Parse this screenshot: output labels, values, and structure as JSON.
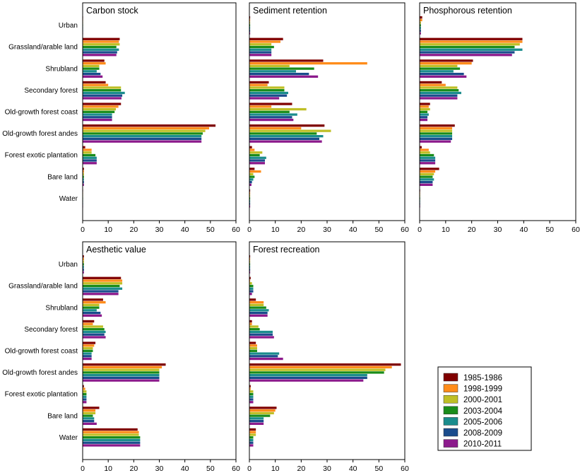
{
  "chart_data": {
    "type": "bar",
    "orientation": "horizontal",
    "categories": [
      "Urban",
      "Grassland/arable land",
      "Shrubland",
      "Secondary forest",
      "Old-growth forest coast",
      "Old-growth forest andes",
      "Forest exotic plantation",
      "Bare land",
      "Water"
    ],
    "xlim": [
      0,
      60
    ],
    "xticks": [
      0,
      10,
      20,
      30,
      40,
      50,
      60
    ],
    "series_names": [
      "1985-1986",
      "1998-1999",
      "2000-2001",
      "2003-2004",
      "2005-2006",
      "2008-2009",
      "2010-2011"
    ],
    "series_colors": [
      "#800000",
      "#ff8c1a",
      "#bfbf26",
      "#1a8c1a",
      "#1a8c8c",
      "#1a4c8c",
      "#8c1a8c"
    ],
    "legend_position": "bottom-right",
    "panels": [
      {
        "title": "Carbon stock",
        "values": [
          [
            0,
            0,
            0,
            0,
            0,
            0,
            0
          ],
          [
            14.5,
            14.2,
            14.5,
            13.2,
            14.2,
            13.5,
            13.2
          ],
          [
            8.5,
            9,
            6.5,
            6.5,
            5.5,
            7,
            7.8
          ],
          [
            9,
            10,
            15,
            15,
            16.5,
            15.5,
            15.2
          ],
          [
            15,
            14,
            13,
            12.5,
            11.5,
            11.5,
            11.5
          ],
          [
            52,
            49.5,
            48,
            47,
            46.5,
            46.5,
            46.5
          ],
          [
            1,
            3.5,
            3.5,
            5,
            5.5,
            5.5,
            5.5
          ],
          [
            0.5,
            0.5,
            0.5,
            0.5,
            0.5,
            0.5,
            0.5
          ],
          [
            0,
            0,
            0,
            0,
            0,
            0,
            0
          ]
        ]
      },
      {
        "title": "Sediment retention",
        "values": [
          [
            0.3,
            0.3,
            0.3,
            0.3,
            0.3,
            0.3,
            0.3
          ],
          [
            13,
            12,
            8.5,
            9.5,
            8.5,
            8.5,
            8.5
          ],
          [
            28.5,
            45.5,
            15.5,
            25,
            18,
            23,
            26.5
          ],
          [
            7.5,
            7,
            13.5,
            13.5,
            15,
            14.5,
            11.5
          ],
          [
            16.5,
            8.5,
            22,
            15.5,
            18.5,
            16.5,
            17
          ],
          [
            29,
            20,
            31.5,
            26,
            28.5,
            27,
            28
          ],
          [
            1,
            2,
            5,
            4,
            6.5,
            6,
            6
          ],
          [
            2,
            4.5,
            1.5,
            2,
            1.5,
            1,
            0.8
          ],
          [
            0.3,
            0.3,
            0.3,
            0.3,
            0.3,
            0.3,
            0.3
          ]
        ]
      },
      {
        "title": "Phosphorous retention",
        "values": [
          [
            1,
            1,
            0.5,
            0.5,
            0.5,
            0.5,
            0.5
          ],
          [
            39.5,
            39.5,
            38.5,
            36.5,
            39.5,
            36.5,
            35.5
          ],
          [
            20.5,
            20,
            14.5,
            15.5,
            13,
            17,
            18
          ],
          [
            8.5,
            10,
            14.5,
            15,
            16,
            14.5,
            14.5
          ],
          [
            4,
            3.5,
            4,
            3,
            3.5,
            3,
            3
          ],
          [
            13.5,
            12.5,
            12.5,
            12.5,
            12.5,
            12.5,
            12
          ],
          [
            0.8,
            3.5,
            4,
            5.5,
            6,
            6,
            6
          ],
          [
            7.5,
            6,
            5.5,
            5,
            5.5,
            5,
            5
          ],
          [
            0.2,
            0.2,
            0.2,
            0.2,
            0.2,
            0.2,
            0.2
          ]
        ]
      },
      {
        "title": "Aesthetic value",
        "values": [
          [
            0.5,
            0.5,
            0.5,
            0.5,
            0.5,
            0.5,
            0.5
          ],
          [
            15,
            15.5,
            15.5,
            14.5,
            15.5,
            14,
            14
          ],
          [
            8,
            9,
            6.5,
            6.5,
            5.5,
            7,
            7.5
          ],
          [
            4.5,
            4,
            8,
            8.5,
            9,
            8.5,
            9
          ],
          [
            5,
            4.5,
            4,
            4,
            3.5,
            3.5,
            3.5
          ],
          [
            32.5,
            31,
            30,
            30,
            30,
            30,
            30
          ],
          [
            0.5,
            1,
            1.5,
            1.5,
            1.5,
            1.5,
            1.5
          ],
          [
            6.5,
            5,
            5,
            4,
            4.5,
            4.5,
            5.5
          ],
          [
            21.5,
            22,
            22,
            22.5,
            22.5,
            22.5,
            22.5
          ]
        ]
      },
      {
        "title": "Forest recreation",
        "values": [
          [
            0.3,
            0.3,
            0.3,
            0.3,
            0.3,
            0.3,
            0.3
          ],
          [
            0.5,
            0.3,
            1,
            1.5,
            1.5,
            1.5,
            1
          ],
          [
            2.5,
            5.5,
            5.5,
            6.5,
            7.5,
            7,
            7
          ],
          [
            1,
            1,
            3.5,
            4,
            9,
            9,
            9.5
          ],
          [
            2.5,
            3,
            3,
            3,
            11.5,
            11,
            13
          ],
          [
            58.5,
            55,
            52.5,
            52,
            45.5,
            45.5,
            44
          ],
          [
            0.5,
            0.5,
            1.5,
            1.5,
            1.5,
            1.5,
            1.5
          ],
          [
            10.5,
            10,
            9.5,
            8,
            5.5,
            5.5,
            5.5
          ],
          [
            2.5,
            2.5,
            2.5,
            1.5,
            1.5,
            1.5,
            1.5
          ]
        ]
      }
    ]
  }
}
